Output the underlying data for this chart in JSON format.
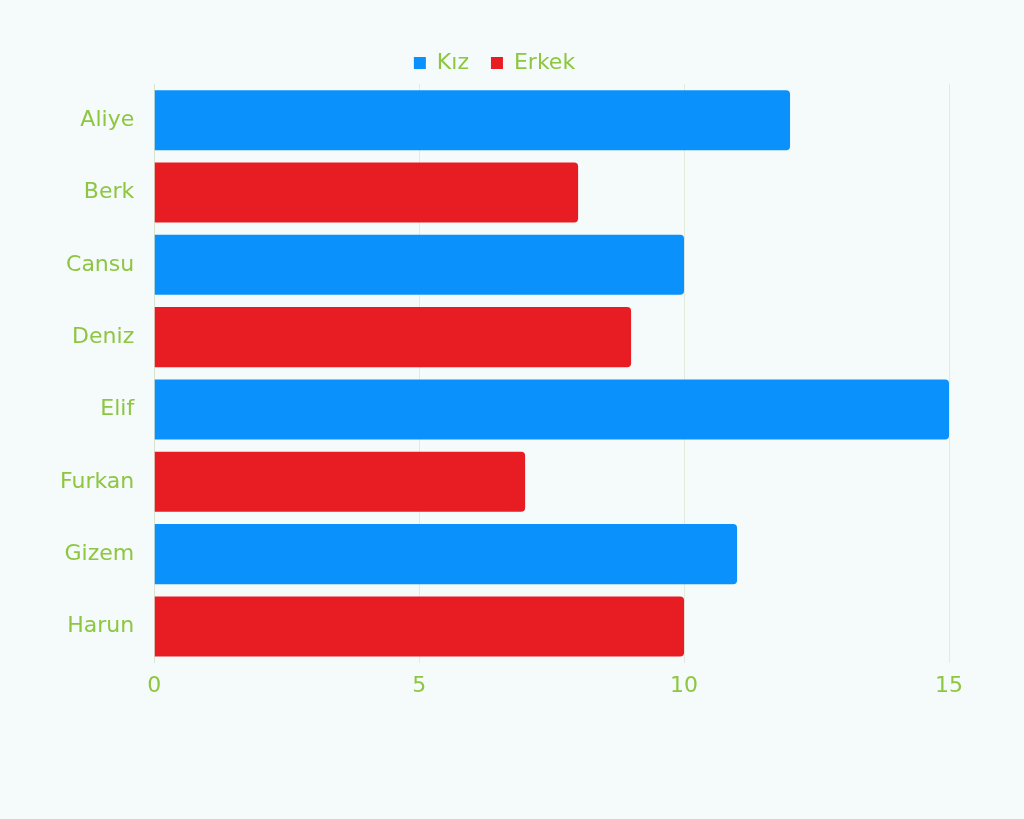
{
  "chart_data": {
    "type": "bar",
    "orientation": "horizontal",
    "categories": [
      "Aliye",
      "Berk",
      "Cansu",
      "Deniz",
      "Elif",
      "Furkan",
      "Gizem",
      "Harun"
    ],
    "series": [
      {
        "name": "Kız",
        "color": "#0a91fb",
        "values": [
          12,
          null,
          10,
          null,
          15,
          null,
          11,
          null
        ]
      },
      {
        "name": "Erkek",
        "color": "#e81c23",
        "values": [
          null,
          8,
          null,
          9,
          null,
          7,
          null,
          10
        ]
      }
    ],
    "xlim": [
      0,
      15
    ],
    "xticks": [
      0,
      5,
      10,
      15
    ],
    "grid": "x",
    "legend": "top"
  }
}
